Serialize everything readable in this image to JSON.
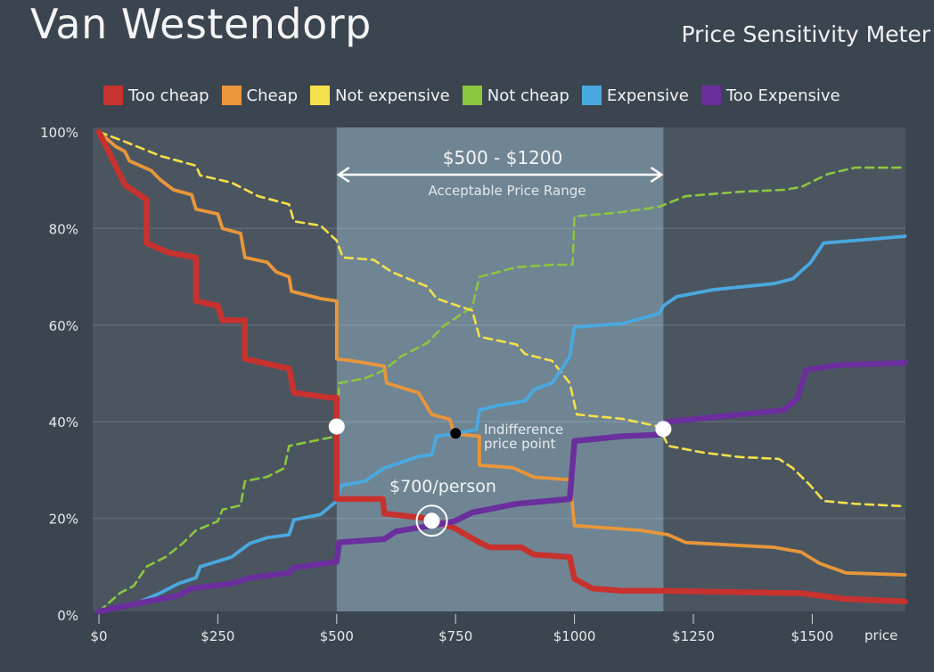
{
  "header": {
    "title": "Van Westendorp",
    "subtitle": "Price Sensitivity Meter"
  },
  "chart_data": {
    "type": "line",
    "xlabel": "price",
    "ylabel": "",
    "xlim": [
      0,
      1700
    ],
    "ylim": [
      0,
      100
    ],
    "x_ticks": [
      0,
      250,
      500,
      750,
      1000,
      1250,
      1500
    ],
    "x_tick_labels": [
      "$0",
      "$250",
      "$500",
      "$750",
      "$1000",
      "$1250",
      "$1500"
    ],
    "y_ticks": [
      0,
      20,
      40,
      60,
      80,
      100
    ],
    "y_tick_labels": [
      "0%",
      "20%",
      "40%",
      "60%",
      "80%",
      "100%"
    ],
    "grid": true,
    "legend_placement": "top",
    "background_color": "#3b4550",
    "plot_color": "#4b5560",
    "range_color": "#6f8594",
    "acceptable_range": {
      "from": 500,
      "to": 1187,
      "label": "$500 - $1200",
      "sublabel": "Acceptable Price Range"
    },
    "series": [
      {
        "name": "Too cheap",
        "color": "#c8322e",
        "style": "solid",
        "weight": "thick",
        "points": [
          [
            0,
            100
          ],
          [
            55,
            89
          ],
          [
            100,
            86
          ],
          [
            100,
            77
          ],
          [
            147,
            75
          ],
          [
            204,
            74
          ],
          [
            204,
            65
          ],
          [
            250,
            64
          ],
          [
            260,
            61
          ],
          [
            307,
            61
          ],
          [
            307,
            53
          ],
          [
            354,
            52
          ],
          [
            400,
            51
          ],
          [
            410,
            46
          ],
          [
            485,
            45
          ],
          [
            500,
            45
          ],
          [
            500,
            24
          ],
          [
            597,
            24
          ],
          [
            600,
            21
          ],
          [
            690,
            20
          ],
          [
            747,
            18
          ],
          [
            800,
            15
          ],
          [
            822,
            14
          ],
          [
            888,
            14
          ],
          [
            915,
            12.5
          ],
          [
            990,
            12
          ],
          [
            1000,
            7.5
          ],
          [
            1037,
            5.5
          ],
          [
            1100,
            5
          ],
          [
            1187,
            5
          ],
          [
            1477,
            4.5
          ],
          [
            1571,
            3.3
          ],
          [
            1695,
            2.8
          ]
        ]
      },
      {
        "name": "Cheap",
        "color": "#e8963a",
        "style": "solid",
        "weight": "medium",
        "points": [
          [
            0,
            100
          ],
          [
            35,
            97
          ],
          [
            54,
            96
          ],
          [
            64,
            94
          ],
          [
            110,
            92
          ],
          [
            130,
            90
          ],
          [
            157,
            88
          ],
          [
            195,
            87
          ],
          [
            204,
            84
          ],
          [
            250,
            83
          ],
          [
            260,
            80
          ],
          [
            298,
            79
          ],
          [
            307,
            74
          ],
          [
            354,
            73
          ],
          [
            373,
            71
          ],
          [
            400,
            70
          ],
          [
            405,
            67
          ],
          [
            466,
            65.5
          ],
          [
            500,
            65
          ],
          [
            500,
            53
          ],
          [
            540,
            52.5
          ],
          [
            600,
            51.5
          ],
          [
            605,
            48
          ],
          [
            672,
            46
          ],
          [
            700,
            41.5
          ],
          [
            738,
            40.5
          ],
          [
            747,
            37.5
          ],
          [
            800,
            37
          ],
          [
            800,
            31
          ],
          [
            870,
            30.5
          ],
          [
            915,
            28.5
          ],
          [
            990,
            28
          ],
          [
            1000,
            18.5
          ],
          [
            1140,
            17.5
          ],
          [
            1197,
            16.6
          ],
          [
            1234,
            15
          ],
          [
            1420,
            14
          ],
          [
            1477,
            13
          ],
          [
            1515,
            10.7
          ],
          [
            1571,
            8.7
          ],
          [
            1695,
            8.3
          ]
        ]
      },
      {
        "name": "Not expensive",
        "color": "#f4e04a",
        "style": "dashed",
        "weight": "thin",
        "points": [
          [
            0,
            100
          ],
          [
            54,
            98
          ],
          [
            130,
            95
          ],
          [
            204,
            93
          ],
          [
            213,
            91
          ],
          [
            279,
            89.5
          ],
          [
            335,
            86.7
          ],
          [
            400,
            85
          ],
          [
            410,
            81.5
          ],
          [
            466,
            80.6
          ],
          [
            500,
            77.5
          ],
          [
            513,
            74
          ],
          [
            578,
            73.5
          ],
          [
            616,
            71
          ],
          [
            690,
            68
          ],
          [
            710,
            65.5
          ],
          [
            785,
            63
          ],
          [
            800,
            57.6
          ],
          [
            878,
            56
          ],
          [
            896,
            54
          ],
          [
            953,
            52.6
          ],
          [
            990,
            48
          ],
          [
            1005,
            41.5
          ],
          [
            1100,
            40.6
          ],
          [
            1178,
            39
          ],
          [
            1197,
            35
          ],
          [
            1272,
            33.6
          ],
          [
            1347,
            32.7
          ],
          [
            1430,
            32.3
          ],
          [
            1459,
            30.4
          ],
          [
            1496,
            26.8
          ],
          [
            1524,
            23.6
          ],
          [
            1590,
            23
          ],
          [
            1695,
            22.5
          ]
        ]
      },
      {
        "name": "Not cheap",
        "color": "#8cc63f",
        "style": "dashed",
        "weight": "thin",
        "points": [
          [
            0,
            0.7
          ],
          [
            45,
            4.6
          ],
          [
            73,
            6
          ],
          [
            100,
            10
          ],
          [
            140,
            12
          ],
          [
            176,
            14.8
          ],
          [
            204,
            17.5
          ],
          [
            250,
            19.4
          ],
          [
            260,
            21.8
          ],
          [
            298,
            22.7
          ],
          [
            307,
            27.7
          ],
          [
            354,
            28.6
          ],
          [
            390,
            30.4
          ],
          [
            400,
            35
          ],
          [
            500,
            37
          ],
          [
            505,
            48
          ],
          [
            560,
            49
          ],
          [
            600,
            50.7
          ],
          [
            635,
            53.5
          ],
          [
            690,
            56.3
          ],
          [
            727,
            60
          ],
          [
            785,
            63.7
          ],
          [
            800,
            70
          ],
          [
            840,
            71
          ],
          [
            878,
            72
          ],
          [
            953,
            72.5
          ],
          [
            996,
            72.5
          ],
          [
            1000,
            82.5
          ],
          [
            1100,
            83.4
          ],
          [
            1178,
            84.5
          ],
          [
            1234,
            86.7
          ],
          [
            1347,
            87.6
          ],
          [
            1440,
            88
          ],
          [
            1477,
            88.6
          ],
          [
            1533,
            91.3
          ],
          [
            1590,
            92.6
          ],
          [
            1695,
            92.6
          ]
        ]
      },
      {
        "name": "Expensive",
        "color": "#4aa8e0",
        "style": "solid",
        "weight": "medium",
        "points": [
          [
            0,
            0.7
          ],
          [
            73,
            2.2
          ],
          [
            130,
            4.6
          ],
          [
            167,
            6.5
          ],
          [
            204,
            7.7
          ],
          [
            213,
            10
          ],
          [
            279,
            12
          ],
          [
            317,
            14.8
          ],
          [
            354,
            16
          ],
          [
            400,
            16.6
          ],
          [
            410,
            19.7
          ],
          [
            466,
            20.8
          ],
          [
            500,
            23.6
          ],
          [
            509,
            26.8
          ],
          [
            560,
            27.7
          ],
          [
            600,
            30.4
          ],
          [
            672,
            32.8
          ],
          [
            700,
            33.2
          ],
          [
            710,
            37
          ],
          [
            747,
            37.5
          ],
          [
            794,
            38.4
          ],
          [
            800,
            42.4
          ],
          [
            840,
            43.4
          ],
          [
            896,
            44.3
          ],
          [
            915,
            46.7
          ],
          [
            953,
            48
          ],
          [
            990,
            53.5
          ],
          [
            1000,
            59.6
          ],
          [
            1100,
            60.3
          ],
          [
            1178,
            62.4
          ],
          [
            1187,
            64
          ],
          [
            1215,
            65.9
          ],
          [
            1290,
            67.3
          ],
          [
            1420,
            68.6
          ],
          [
            1459,
            69.6
          ],
          [
            1496,
            72.9
          ],
          [
            1524,
            77
          ],
          [
            1590,
            77.5
          ],
          [
            1695,
            78.4
          ]
        ]
      },
      {
        "name": "Too Expensive",
        "color": "#6a2f9c",
        "style": "solid",
        "weight": "thick",
        "points": [
          [
            0,
            0.7
          ],
          [
            92,
            2.6
          ],
          [
            167,
            4
          ],
          [
            195,
            5.5
          ],
          [
            279,
            6.5
          ],
          [
            317,
            7.7
          ],
          [
            400,
            8.7
          ],
          [
            410,
            9.8
          ],
          [
            500,
            11
          ],
          [
            505,
            15
          ],
          [
            600,
            15.7
          ],
          [
            625,
            17.3
          ],
          [
            700,
            18.5
          ],
          [
            747,
            19.4
          ],
          [
            785,
            21.2
          ],
          [
            878,
            23
          ],
          [
            990,
            24
          ],
          [
            1000,
            36
          ],
          [
            1100,
            37
          ],
          [
            1178,
            37.3
          ],
          [
            1197,
            40
          ],
          [
            1347,
            41.5
          ],
          [
            1440,
            42.4
          ],
          [
            1468,
            44.8
          ],
          [
            1487,
            50.7
          ],
          [
            1552,
            51.7
          ],
          [
            1695,
            52.2
          ]
        ]
      }
    ],
    "markers": [
      {
        "x": 500,
        "y": 39,
        "color": "#ffffff",
        "ring": false
      },
      {
        "x": 750,
        "y": 37.6,
        "color": "#000000",
        "ring": false
      },
      {
        "x": 700,
        "y": 19.5,
        "color": "#ffffff",
        "ring": true
      },
      {
        "x": 1187,
        "y": 38.5,
        "color": "#ffffff",
        "ring": false
      }
    ],
    "annotations": {
      "indifference_line1": "Indifference",
      "indifference_line2": "price point",
      "optimal": "$700/person"
    }
  }
}
